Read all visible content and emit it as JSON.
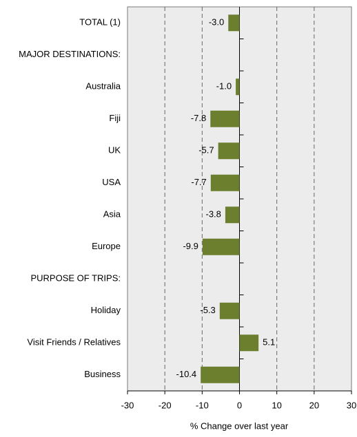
{
  "chart_data": {
    "type": "hbar",
    "categories": [
      "TOTAL (1)",
      "MAJOR DESTINATIONS:",
      "Australia",
      "Fiji",
      "UK",
      "USA",
      "Asia",
      "Europe",
      "PURPOSE OF TRIPS:",
      "Holiday",
      "Visit Friends / Relatives",
      "Business"
    ],
    "values": [
      -3.0,
      null,
      -1.0,
      -7.8,
      -5.7,
      -7.7,
      -3.8,
      -9.9,
      null,
      -5.3,
      5.1,
      -10.4
    ],
    "value_labels": [
      "-3.0",
      null,
      "-1.0",
      "-7.8",
      "-5.7",
      "-7.7",
      "-3.8",
      "-9.9",
      null,
      "-5.3",
      "5.1",
      "-10.4"
    ],
    "color": "#6b7f2f",
    "xlabel": "% Change over last year",
    "xlim": [
      -30,
      30
    ],
    "xticks": [
      -30,
      -20,
      -10,
      0,
      10,
      20,
      30
    ],
    "grid": true
  }
}
